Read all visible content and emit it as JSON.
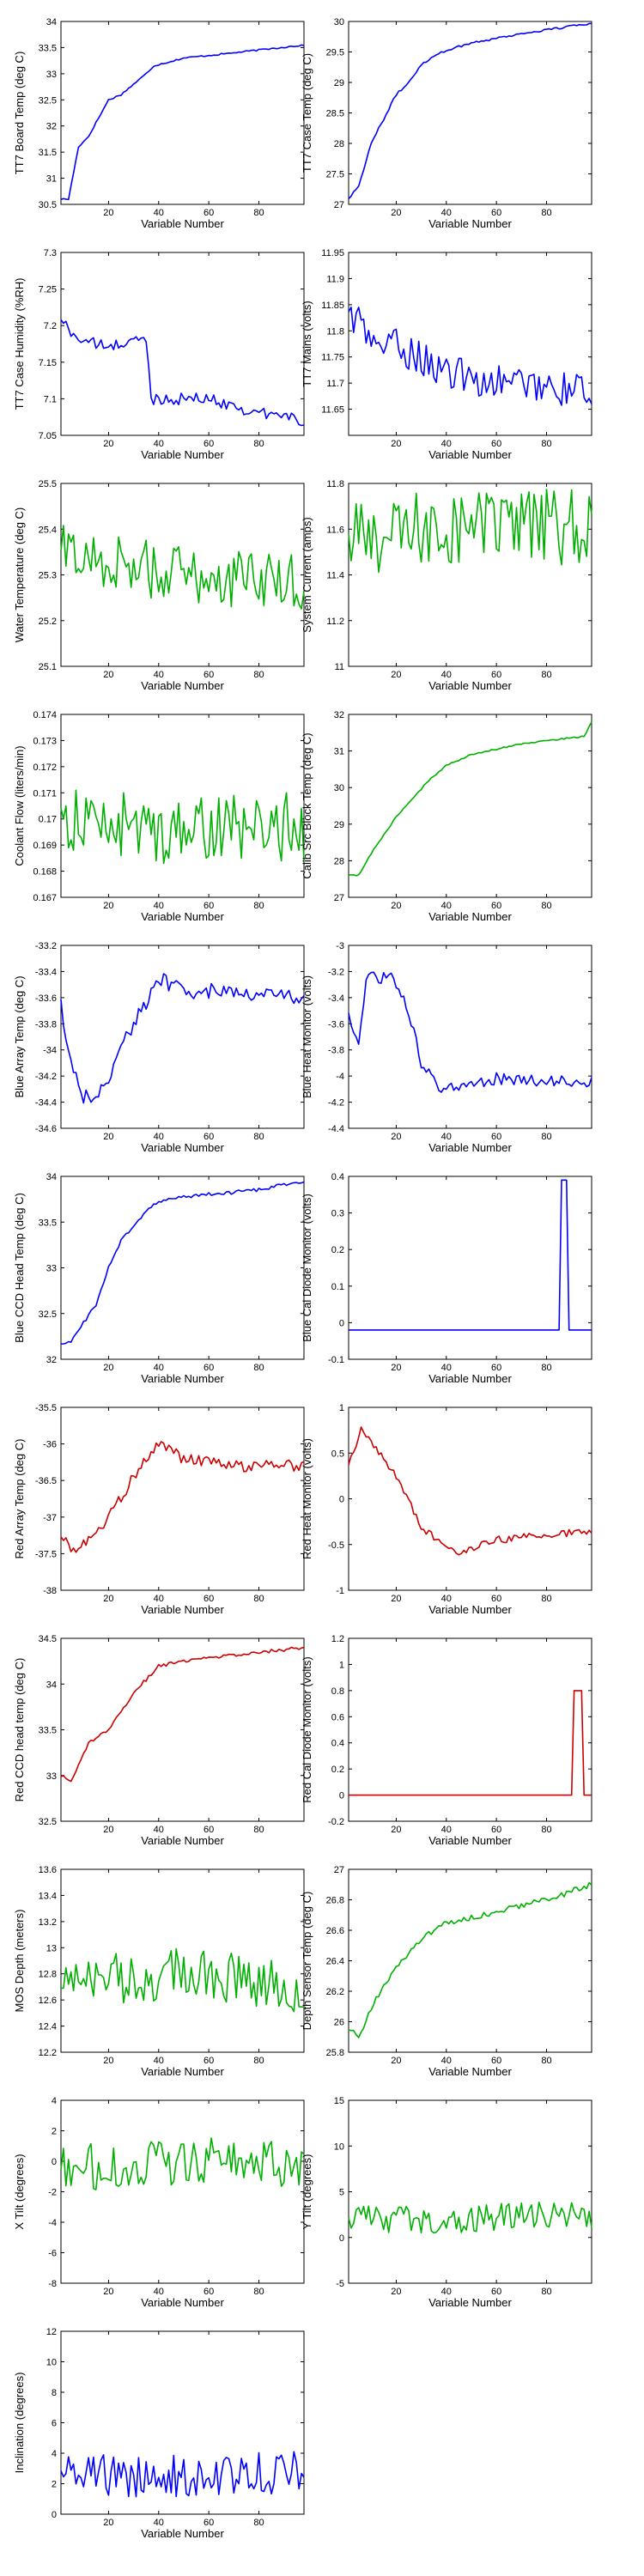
{
  "chart_data": [
    {
      "type": "line",
      "ylabel": "TT7 Board Temp (deg C)",
      "xlabel": "Variable Number",
      "xlim": [
        1,
        98
      ],
      "ylim": [
        30.5,
        34
      ],
      "yticks": [
        "30.5",
        "31",
        "31.5",
        "32",
        "32.5",
        "33",
        "33.5",
        "34"
      ],
      "xticks": [
        "20",
        "40",
        "60",
        "80"
      ],
      "color": "#0000ff",
      "knots": [
        [
          1,
          30.6
        ],
        [
          4,
          30.6
        ],
        [
          8,
          31.6
        ],
        [
          12,
          31.8
        ],
        [
          20,
          32.5
        ],
        [
          25,
          32.6
        ],
        [
          35,
          33.0
        ],
        [
          38,
          33.15
        ],
        [
          50,
          33.3
        ],
        [
          70,
          33.4
        ],
        [
          98,
          33.55
        ]
      ],
      "noise": 0.015,
      "series": [
        {
          "values": []
        }
      ]
    },
    {
      "type": "line",
      "ylabel": "TT7 Case Temp (deg C)",
      "xlabel": "Variable Number",
      "xlim": [
        1,
        98
      ],
      "ylim": [
        27,
        30
      ],
      "yticks": [
        "27",
        "27.5",
        "28",
        "28.5",
        "29",
        "29.5",
        "30"
      ],
      "xticks": [
        "20",
        "40",
        "60",
        "80"
      ],
      "color": "#0000ff",
      "knots": [
        [
          1,
          27.1
        ],
        [
          5,
          27.3
        ],
        [
          10,
          28.0
        ],
        [
          20,
          28.8
        ],
        [
          25,
          29.0
        ],
        [
          30,
          29.3
        ],
        [
          38,
          29.5
        ],
        [
          50,
          29.65
        ],
        [
          70,
          29.8
        ],
        [
          98,
          29.97
        ]
      ],
      "noise": 0.02,
      "series": [
        {
          "values": []
        }
      ]
    },
    {
      "type": "line",
      "ylabel": "TT7 Case Humidity (%RH)",
      "xlabel": "Variable Number",
      "xlim": [
        1,
        98
      ],
      "ylim": [
        7.05,
        7.3
      ],
      "yticks": [
        "7.05",
        "7.1",
        "7.15",
        "7.2",
        "7.25",
        "7.3"
      ],
      "xticks": [
        "20",
        "40",
        "60",
        "80"
      ],
      "color": "#0000ff",
      "knots": [
        [
          1,
          7.21
        ],
        [
          5,
          7.19
        ],
        [
          10,
          7.18
        ],
        [
          20,
          7.17
        ],
        [
          30,
          7.18
        ],
        [
          35,
          7.18
        ],
        [
          37,
          7.1
        ],
        [
          50,
          7.1
        ],
        [
          60,
          7.1
        ],
        [
          80,
          7.08
        ],
        [
          95,
          7.075
        ],
        [
          98,
          7.06
        ]
      ],
      "noise": 0.008,
      "series": [
        {
          "values": []
        }
      ]
    },
    {
      "type": "line",
      "ylabel": "TT7 Mains  (volts)",
      "xlabel": "Variable Number",
      "xlim": [
        1,
        98
      ],
      "ylim": [
        11.6,
        11.95
      ],
      "yticks": [
        "11.65",
        "11.7",
        "11.75",
        "11.8",
        "11.85",
        "11.9",
        "11.95"
      ],
      "xticks": [
        "20",
        "40",
        "60",
        "80"
      ],
      "color": "#0000ff",
      "knots": [
        [
          1,
          11.84
        ],
        [
          10,
          11.78
        ],
        [
          20,
          11.77
        ],
        [
          30,
          11.75
        ],
        [
          40,
          11.72
        ],
        [
          50,
          11.71
        ],
        [
          60,
          11.7
        ],
        [
          70,
          11.7
        ],
        [
          80,
          11.7
        ],
        [
          90,
          11.68
        ],
        [
          98,
          11.69
        ]
      ],
      "noise": 0.035,
      "series": [
        {
          "values": []
        }
      ]
    },
    {
      "type": "line",
      "ylabel": "Water Temperature (deg C)",
      "xlabel": "Variable Number",
      "xlim": [
        1,
        98
      ],
      "ylim": [
        25.1,
        25.5
      ],
      "yticks": [
        "25.1",
        "25.2",
        "25.3",
        "25.4",
        "25.5"
      ],
      "xticks": [
        "20",
        "40",
        "60",
        "80"
      ],
      "color": "#00b000",
      "knots": [
        [
          1,
          25.35
        ],
        [
          50,
          25.3
        ],
        [
          98,
          25.28
        ]
      ],
      "noise": 0.065,
      "series": [
        {
          "values": []
        }
      ]
    },
    {
      "type": "line",
      "ylabel": "System Current (amps)",
      "xlabel": "Variable Number",
      "xlim": [
        1,
        98
      ],
      "ylim": [
        11,
        11.8
      ],
      "yticks": [
        "11",
        "11.2",
        "11.4",
        "11.6",
        "11.8"
      ],
      "xticks": [
        "20",
        "40",
        "60",
        "80"
      ],
      "color": "#00b000",
      "knots": [
        [
          1,
          11.55
        ],
        [
          50,
          11.62
        ],
        [
          98,
          11.6
        ]
      ],
      "noise": 0.17,
      "series": [
        {
          "values": []
        }
      ]
    },
    {
      "type": "line",
      "ylabel": "Coolant Flow (liters/min)",
      "xlabel": "Variable Number",
      "xlim": [
        1,
        98
      ],
      "ylim": [
        0.167,
        0.174
      ],
      "yticks": [
        "0.167",
        "0.168",
        "0.169",
        "0.17",
        "0.171",
        "0.172",
        "0.173",
        "0.174"
      ],
      "xticks": [
        "20",
        "40",
        "60",
        "80"
      ],
      "color": "#00b000",
      "knots": [
        [
          1,
          0.17
        ],
        [
          50,
          0.1695
        ],
        [
          98,
          0.1697
        ]
      ],
      "noise": 0.0013,
      "series": [
        {
          "values": []
        }
      ]
    },
    {
      "type": "line",
      "ylabel": "Calib Src Block Temp (deg C)",
      "xlabel": "Variable Number",
      "xlim": [
        1,
        98
      ],
      "ylim": [
        27,
        32
      ],
      "yticks": [
        "27",
        "28",
        "29",
        "30",
        "31",
        "32"
      ],
      "xticks": [
        "20",
        "40",
        "60",
        "80"
      ],
      "color": "#00b000",
      "knots": [
        [
          1,
          27.6
        ],
        [
          5,
          27.6
        ],
        [
          10,
          28.2
        ],
        [
          20,
          29.2
        ],
        [
          28,
          29.8
        ],
        [
          33,
          30.2
        ],
        [
          40,
          30.6
        ],
        [
          50,
          30.9
        ],
        [
          70,
          31.2
        ],
        [
          95,
          31.4
        ],
        [
          98,
          31.8
        ]
      ],
      "noise": 0.02,
      "series": [
        {
          "values": []
        }
      ]
    },
    {
      "type": "line",
      "ylabel": "Blue Array Temp (deg C)",
      "xlabel": "Variable Number",
      "xlim": [
        1,
        98
      ],
      "ylim": [
        -34.6,
        -33.2
      ],
      "yticks": [
        "-34.6",
        "-34.4",
        "-34.2",
        "-34",
        "-33.8",
        "-33.6",
        "-33.4",
        "-33.2"
      ],
      "xticks": [
        "20",
        "40",
        "60",
        "80"
      ],
      "color": "#0000ff",
      "knots": [
        [
          1,
          -33.65
        ],
        [
          5,
          -34.1
        ],
        [
          10,
          -34.35
        ],
        [
          15,
          -34.4
        ],
        [
          20,
          -34.2
        ],
        [
          25,
          -33.95
        ],
        [
          35,
          -33.65
        ],
        [
          40,
          -33.45
        ],
        [
          50,
          -33.55
        ],
        [
          70,
          -33.55
        ],
        [
          98,
          -33.6
        ]
      ],
      "noise": 0.06,
      "series": [
        {
          "values": []
        }
      ]
    },
    {
      "type": "line",
      "ylabel": "Blue Heat Monitor (volts)",
      "xlabel": "Variable Number",
      "xlim": [
        1,
        98
      ],
      "ylim": [
        -4.4,
        -3
      ],
      "yticks": [
        "-4.4",
        "-4.2",
        "-4",
        "-3.8",
        "-3.6",
        "-3.4",
        "-3.2",
        "-3"
      ],
      "xticks": [
        "20",
        "40",
        "60",
        "80"
      ],
      "color": "#0000ff",
      "knots": [
        [
          1,
          -3.55
        ],
        [
          5,
          -3.75
        ],
        [
          8,
          -3.25
        ],
        [
          18,
          -3.25
        ],
        [
          25,
          -3.5
        ],
        [
          30,
          -3.9
        ],
        [
          35,
          -4.05
        ],
        [
          40,
          -4.1
        ],
        [
          60,
          -4.02
        ],
        [
          98,
          -4.05
        ]
      ],
      "noise": 0.045,
      "series": [
        {
          "values": []
        }
      ]
    },
    {
      "type": "line",
      "ylabel": "Blue CCD Head Temp (deg C)",
      "xlabel": "Variable Number",
      "xlim": [
        1,
        98
      ],
      "ylim": [
        32,
        34
      ],
      "yticks": [
        "32",
        "32.5",
        "33",
        "33.5",
        "34"
      ],
      "xticks": [
        "20",
        "40",
        "60",
        "80"
      ],
      "color": "#0000ff",
      "knots": [
        [
          1,
          32.15
        ],
        [
          5,
          32.2
        ],
        [
          15,
          32.6
        ],
        [
          20,
          33.0
        ],
        [
          25,
          33.3
        ],
        [
          30,
          33.45
        ],
        [
          38,
          33.7
        ],
        [
          50,
          33.78
        ],
        [
          80,
          33.85
        ],
        [
          98,
          33.95
        ]
      ],
      "noise": 0.02,
      "series": [
        {
          "values": []
        }
      ]
    },
    {
      "type": "line",
      "ylabel": "Blue Cal Diode Monitor (volts)",
      "xlabel": "Variable Number",
      "xlim": [
        1,
        98
      ],
      "ylim": [
        -0.1,
        0.4
      ],
      "yticks": [
        "-0.1",
        "0",
        "0.1",
        "0.2",
        "0.3",
        "0.4"
      ],
      "xticks": [
        "20",
        "40",
        "60",
        "80"
      ],
      "color": "#0000ff",
      "knots": [
        [
          1,
          -0.02
        ],
        [
          98,
          -0.02
        ]
      ],
      "noise": 0.0,
      "spike": {
        "start": 86,
        "end": 88,
        "value": 0.39
      },
      "series": [
        {
          "values": []
        }
      ]
    },
    {
      "type": "line",
      "ylabel": "Red Array Temp (deg C)",
      "xlabel": "Variable Number",
      "xlim": [
        1,
        98
      ],
      "ylim": [
        -38,
        -35.5
      ],
      "yticks": [
        "-38",
        "-37.5",
        "-37",
        "-36.5",
        "-36",
        "-35.5"
      ],
      "xticks": [
        "20",
        "40",
        "60",
        "80"
      ],
      "color": "#cc0000",
      "knots": [
        [
          1,
          -37.2
        ],
        [
          5,
          -37.5
        ],
        [
          12,
          -37.3
        ],
        [
          20,
          -37.0
        ],
        [
          30,
          -36.45
        ],
        [
          40,
          -36.0
        ],
        [
          50,
          -36.2
        ],
        [
          70,
          -36.3
        ],
        [
          98,
          -36.3
        ]
      ],
      "noise": 0.08,
      "series": [
        {
          "values": []
        }
      ]
    },
    {
      "type": "line",
      "ylabel": "Red Heat Monitor (volts)",
      "xlabel": "Variable Number",
      "xlim": [
        1,
        98
      ],
      "ylim": [
        -1,
        1
      ],
      "yticks": [
        "-1",
        "-0.5",
        "0",
        "0.5",
        "1"
      ],
      "xticks": [
        "20",
        "40",
        "60",
        "80"
      ],
      "color": "#cc0000",
      "knots": [
        [
          1,
          0.4
        ],
        [
          6,
          0.75
        ],
        [
          12,
          0.55
        ],
        [
          20,
          0.25
        ],
        [
          30,
          -0.3
        ],
        [
          38,
          -0.5
        ],
        [
          45,
          -0.6
        ],
        [
          60,
          -0.45
        ],
        [
          98,
          -0.35
        ]
      ],
      "noise": 0.04,
      "series": [
        {
          "values": []
        }
      ]
    },
    {
      "type": "line",
      "ylabel": "Red CCD head temp (deg C)",
      "xlabel": "Variable Number",
      "xlim": [
        1,
        98
      ],
      "ylim": [
        32.5,
        34.5
      ],
      "yticks": [
        "32.5",
        "33",
        "33.5",
        "34",
        "34.5"
      ],
      "xticks": [
        "20",
        "40",
        "60",
        "80"
      ],
      "color": "#cc0000",
      "knots": [
        [
          1,
          33.0
        ],
        [
          5,
          32.95
        ],
        [
          12,
          33.35
        ],
        [
          20,
          33.5
        ],
        [
          30,
          33.9
        ],
        [
          40,
          34.2
        ],
        [
          50,
          34.25
        ],
        [
          70,
          34.32
        ],
        [
          98,
          34.4
        ]
      ],
      "noise": 0.02,
      "series": [
        {
          "values": []
        }
      ]
    },
    {
      "type": "line",
      "ylabel": "Red Cal Diode Monitor (volts)",
      "xlabel": "Variable Number",
      "xlim": [
        1,
        98
      ],
      "ylim": [
        -0.2,
        1.2
      ],
      "yticks": [
        "-0.2",
        "0",
        "0.2",
        "0.4",
        "0.6",
        "0.8",
        "1",
        "1.2"
      ],
      "xticks": [
        "20",
        "40",
        "60",
        "80"
      ],
      "color": "#cc0000",
      "knots": [
        [
          1,
          0
        ],
        [
          98,
          0
        ]
      ],
      "noise": 0.0,
      "spike": {
        "start": 91,
        "end": 94,
        "value": 0.8
      },
      "series": [
        {
          "values": []
        }
      ]
    },
    {
      "type": "line",
      "ylabel": "MOS Depth  (meters)",
      "xlabel": "Variable Number",
      "xlim": [
        1,
        98
      ],
      "ylim": [
        12.2,
        13.6
      ],
      "yticks": [
        "12.2",
        "12.4",
        "12.6",
        "12.8",
        "13",
        "13.2",
        "13.4",
        "13.6"
      ],
      "xticks": [
        "20",
        "40",
        "60",
        "80"
      ],
      "color": "#00b000",
      "knots": [
        [
          1,
          12.75
        ],
        [
          50,
          12.8
        ],
        [
          98,
          12.7
        ]
      ],
      "noise": 0.2,
      "series": [
        {
          "values": []
        }
      ]
    },
    {
      "type": "line",
      "ylabel": "Depth Sensor Temp (deg C)",
      "xlabel": "Variable Number",
      "xlim": [
        1,
        98
      ],
      "ylim": [
        25.8,
        27
      ],
      "yticks": [
        "25.8",
        "26",
        "26.2",
        "26.4",
        "26.6",
        "26.8",
        "27"
      ],
      "xticks": [
        "20",
        "40",
        "60",
        "80"
      ],
      "color": "#00b000",
      "knots": [
        [
          1,
          25.95
        ],
        [
          5,
          25.9
        ],
        [
          12,
          26.15
        ],
        [
          20,
          26.35
        ],
        [
          30,
          26.55
        ],
        [
          40,
          26.65
        ],
        [
          60,
          26.72
        ],
        [
          80,
          26.8
        ],
        [
          98,
          26.9
        ]
      ],
      "noise": 0.02,
      "series": [
        {
          "values": []
        }
      ]
    },
    {
      "type": "line",
      "ylabel": "X Tilt  (degrees)",
      "xlabel": "Variable Number",
      "xlim": [
        1,
        98
      ],
      "ylim": [
        -8,
        4
      ],
      "yticks": [
        "-8",
        "-6",
        "-4",
        "-2",
        "0",
        "2",
        "4"
      ],
      "xticks": [
        "20",
        "40",
        "60",
        "80"
      ],
      "color": "#00b000",
      "knots": [
        [
          1,
          -0.5
        ],
        [
          50,
          0
        ],
        [
          98,
          -0.3
        ]
      ],
      "noise": 1.6,
      "series": [
        {
          "values": []
        }
      ]
    },
    {
      "type": "line",
      "ylabel": "Y Tilt  (degrees)",
      "xlabel": "Variable Number",
      "xlim": [
        1,
        98
      ],
      "ylim": [
        -5,
        15
      ],
      "yticks": [
        "-5",
        "0",
        "5",
        "10",
        "15"
      ],
      "xticks": [
        "20",
        "40",
        "60",
        "80"
      ],
      "color": "#00b000",
      "knots": [
        [
          1,
          2
        ],
        [
          50,
          2
        ],
        [
          98,
          2.5
        ]
      ],
      "noise": 1.6,
      "series": [
        {
          "values": []
        }
      ]
    },
    {
      "type": "line",
      "ylabel": "Inclination  (degrees)",
      "xlabel": "Variable Number",
      "xlim": [
        1,
        98
      ],
      "ylim": [
        0,
        12
      ],
      "yticks": [
        "0",
        "2",
        "4",
        "6",
        "8",
        "10",
        "12"
      ],
      "xticks": [
        "20",
        "40",
        "60",
        "80"
      ],
      "color": "#0000ff",
      "knots": [
        [
          1,
          2.5
        ],
        [
          50,
          2.5
        ],
        [
          98,
          2.8
        ]
      ],
      "noise": 1.4,
      "series": [
        {
          "values": []
        }
      ]
    }
  ]
}
